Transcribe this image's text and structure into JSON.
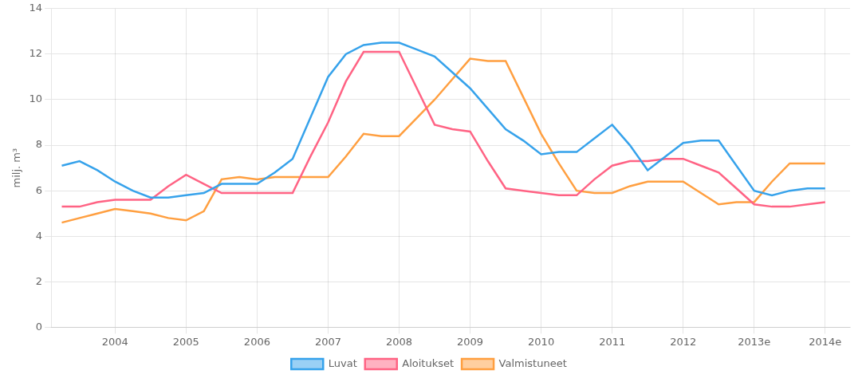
{
  "chart_data": {
    "type": "line",
    "ylabel": "milj. m³",
    "x": [
      2003.25,
      2003.5,
      2003.75,
      2004.0,
      2004.25,
      2004.5,
      2004.75,
      2005.0,
      2005.25,
      2005.5,
      2005.75,
      2006.0,
      2006.25,
      2006.5,
      2006.75,
      2007.0,
      2007.25,
      2007.5,
      2007.75,
      2008.0,
      2008.25,
      2008.5,
      2008.75,
      2009.0,
      2009.25,
      2009.5,
      2009.75,
      2010.0,
      2010.25,
      2010.5,
      2010.75,
      2011.0,
      2011.25,
      2011.5,
      2011.75,
      2012.0,
      2012.25,
      2012.5,
      2012.75,
      2013.0,
      2013.25,
      2013.5,
      2013.75,
      2014.0
    ],
    "series": [
      {
        "name": "Luvat",
        "values": [
          7.1,
          7.3,
          6.9,
          6.4,
          6.0,
          5.7,
          5.7,
          5.8,
          5.9,
          6.3,
          6.3,
          6.3,
          6.8,
          7.4,
          9.2,
          11.0,
          12.0,
          12.4,
          12.5,
          12.5,
          12.2,
          11.9,
          11.2,
          10.5,
          9.6,
          8.7,
          8.2,
          7.6,
          7.7,
          7.7,
          8.3,
          8.9,
          8.0,
          6.9,
          7.5,
          8.1,
          8.2,
          8.2,
          7.1,
          6.0,
          5.8,
          6.0,
          6.1,
          6.1
        ]
      },
      {
        "name": "Aloitukset",
        "values": [
          5.3,
          5.3,
          5.5,
          5.6,
          5.6,
          5.6,
          6.2,
          6.7,
          6.3,
          5.9,
          5.9,
          5.9,
          5.9,
          5.9,
          7.5,
          9.0,
          10.8,
          12.1,
          12.1,
          12.1,
          10.5,
          8.9,
          8.7,
          8.6,
          7.3,
          6.1,
          6.0,
          5.9,
          5.8,
          5.8,
          6.5,
          7.1,
          7.3,
          7.3,
          7.4,
          7.4,
          7.1,
          6.8,
          6.1,
          5.4,
          5.3,
          5.3,
          5.4,
          5.5
        ]
      },
      {
        "name": "Valmistuneet",
        "values": [
          4.6,
          4.8,
          5.0,
          5.2,
          5.1,
          5.0,
          4.8,
          4.7,
          5.1,
          6.5,
          6.6,
          6.5,
          6.6,
          6.6,
          6.6,
          6.6,
          7.5,
          8.5,
          8.4,
          8.4,
          9.2,
          10.0,
          10.9,
          11.8,
          11.7,
          11.7,
          10.1,
          8.5,
          7.2,
          6.0,
          5.9,
          5.9,
          6.2,
          6.4,
          6.4,
          6.4,
          5.9,
          5.4,
          5.5,
          5.5,
          6.4,
          7.2,
          7.2,
          7.2
        ]
      }
    ],
    "xlim": [
      2003.1,
      2014.35
    ],
    "xticks": [
      2004,
      2005,
      2006,
      2007,
      2008,
      2009,
      2010,
      2011,
      2012,
      {
        "value": 2013,
        "label": "2013e"
      },
      {
        "value": 2014,
        "label": "2014e"
      }
    ],
    "ylim": [
      0,
      14
    ],
    "yticks": [
      0,
      2,
      4,
      6,
      8,
      10,
      12,
      14
    ],
    "grid": true,
    "legend": "bottom"
  }
}
